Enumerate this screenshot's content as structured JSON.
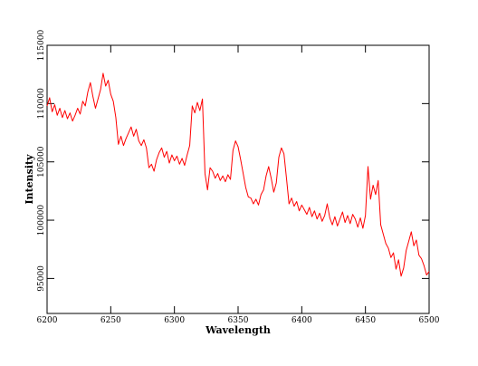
{
  "chart_data": {
    "type": "line",
    "x_label": "Wavelength",
    "y_label": "Intensity",
    "xlim": [
      6200,
      6500
    ],
    "xticks": [
      6200,
      6250,
      6300,
      6350,
      6400,
      6450,
      6500
    ],
    "ylim": [
      92000,
      115000
    ],
    "yticks": [
      95000,
      100000,
      105000,
      110000,
      115000
    ],
    "series": [
      {
        "color": "#ff0000",
        "x": [
          6200,
          6202,
          6204,
          6206,
          6208,
          6210,
          6212,
          6214,
          6216,
          6218,
          6220,
          6222,
          6224,
          6226,
          6228,
          6230,
          6232,
          6234,
          6236,
          6238,
          6240,
          6242,
          6244,
          6246,
          6248,
          6250,
          6252,
          6254,
          6256,
          6258,
          6260,
          6262,
          6264,
          6266,
          6268,
          6270,
          6272,
          6274,
          6276,
          6278,
          6280,
          6282,
          6284,
          6286,
          6288,
          6290,
          6292,
          6294,
          6296,
          6298,
          6300,
          6302,
          6304,
          6306,
          6308,
          6310,
          6312,
          6314,
          6316,
          6318,
          6320,
          6322,
          6324,
          6326,
          6328,
          6330,
          6332,
          6334,
          6336,
          6338,
          6340,
          6342,
          6344,
          6346,
          6348,
          6350,
          6352,
          6354,
          6356,
          6358,
          6360,
          6362,
          6364,
          6366,
          6368,
          6370,
          6372,
          6374,
          6376,
          6378,
          6380,
          6382,
          6384,
          6386,
          6388,
          6390,
          6392,
          6394,
          6396,
          6398,
          6400,
          6402,
          6404,
          6406,
          6408,
          6410,
          6412,
          6414,
          6416,
          6418,
          6420,
          6422,
          6424,
          6426,
          6428,
          6430,
          6432,
          6434,
          6436,
          6438,
          6440,
          6442,
          6444,
          6446,
          6448,
          6450,
          6452,
          6454,
          6456,
          6458,
          6460,
          6462,
          6464,
          6466,
          6468,
          6470,
          6472,
          6474,
          6476,
          6478,
          6480,
          6482,
          6484,
          6486,
          6488,
          6490,
          6492,
          6494,
          6496,
          6498,
          6500
        ],
        "values": [
          109800,
          110500,
          109300,
          109900,
          109000,
          109600,
          108800,
          109400,
          108700,
          109200,
          108500,
          109000,
          109600,
          109100,
          110200,
          109800,
          111000,
          111800,
          110600,
          109600,
          110400,
          111200,
          112600,
          111500,
          112000,
          110800,
          110200,
          108800,
          106500,
          107200,
          106400,
          107000,
          107500,
          108000,
          107200,
          107800,
          106800,
          106400,
          106900,
          106200,
          104500,
          104800,
          104200,
          105200,
          105800,
          106200,
          105400,
          105900,
          104900,
          105600,
          105100,
          105500,
          104800,
          105300,
          104700,
          105600,
          106400,
          109800,
          109200,
          110100,
          109400,
          110400,
          104000,
          102600,
          104500,
          104200,
          103600,
          104000,
          103400,
          103800,
          103300,
          103900,
          103500,
          106000,
          106800,
          106300,
          105200,
          104000,
          102800,
          102000,
          101900,
          101400,
          101800,
          101300,
          102200,
          102600,
          103800,
          104600,
          103600,
          102400,
          103200,
          105400,
          106200,
          105700,
          103600,
          101400,
          101900,
          101200,
          101600,
          100800,
          101300,
          100900,
          100500,
          101100,
          100300,
          100800,
          100100,
          100600,
          99900,
          100400,
          101400,
          100200,
          99600,
          100300,
          99500,
          100100,
          100700,
          99800,
          100400,
          99700,
          100500,
          100100,
          99400,
          100200,
          99300,
          100400,
          104600,
          101800,
          103000,
          102200,
          103400,
          99600,
          98800,
          98000,
          97600,
          96800,
          97200,
          95800,
          96600,
          95200,
          95900,
          97400,
          98200,
          99000,
          97800,
          98300,
          97000,
          96700,
          96100,
          95300,
          95600
        ]
      }
    ]
  }
}
